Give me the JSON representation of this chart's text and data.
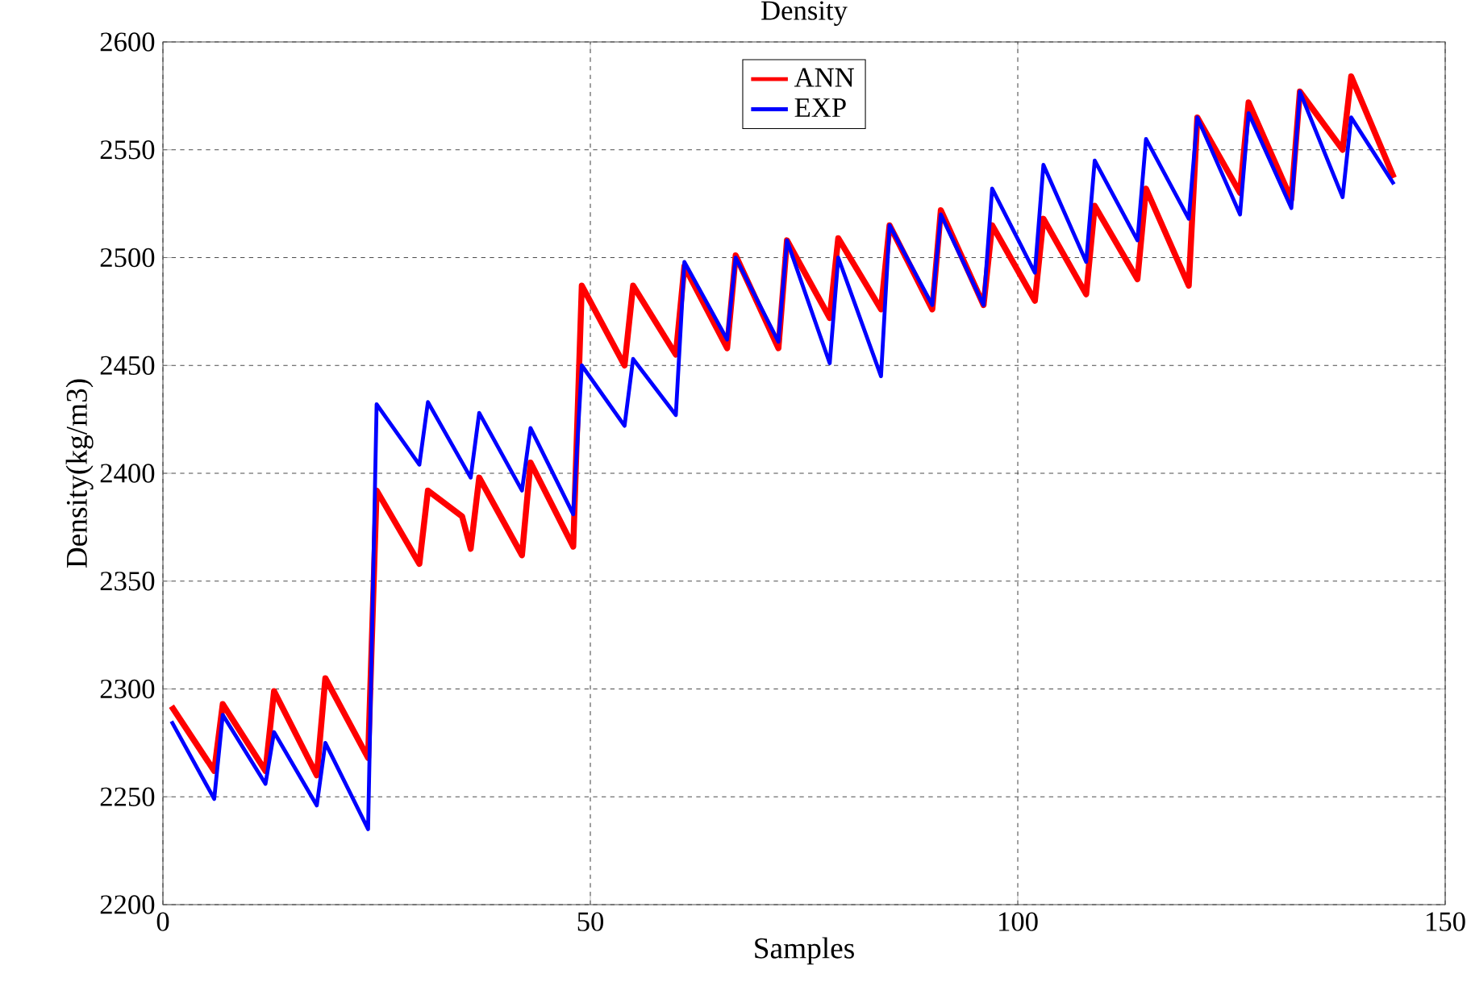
{
  "chart_data": {
    "type": "line",
    "title": "Density",
    "xlabel": "Samples",
    "ylabel": "Density(kg/m3)",
    "xlim": [
      0,
      150
    ],
    "xticks": [
      0,
      50,
      100,
      150
    ],
    "ylim": [
      2200,
      2600
    ],
    "yticks": [
      2200,
      2250,
      2300,
      2350,
      2400,
      2450,
      2500,
      2550,
      2600
    ],
    "grid": true,
    "legend": "top",
    "marker": "none",
    "line_style": "solid",
    "series": [
      {
        "name": "ANN",
        "color": "#ff0000",
        "x": [
          1,
          6,
          7,
          12,
          13,
          18,
          19,
          24,
          25,
          30,
          31,
          35,
          36,
          37,
          42,
          43,
          48,
          49,
          54,
          55,
          60,
          61,
          66,
          67,
          72,
          73,
          78,
          79,
          84,
          85,
          90,
          91,
          96,
          97,
          102,
          103,
          108,
          109,
          114,
          115,
          120,
          121,
          126,
          127,
          132,
          133,
          138,
          139,
          144
        ],
        "values": [
          2292,
          2262,
          2293,
          2262,
          2299,
          2260,
          2305,
          2268,
          2392,
          2358,
          2392,
          2380,
          2365,
          2398,
          2362,
          2405,
          2366,
          2487,
          2450,
          2487,
          2455,
          2496,
          2458,
          2501,
          2458,
          2508,
          2472,
          2509,
          2476,
          2515,
          2476,
          2522,
          2478,
          2515,
          2480,
          2518,
          2483,
          2524,
          2490,
          2532,
          2487,
          2565,
          2530,
          2572,
          2527,
          2577,
          2550,
          2584,
          2537
        ]
      },
      {
        "name": "EXP",
        "color": "#0000ff",
        "x": [
          1,
          6,
          7,
          12,
          13,
          18,
          19,
          24,
          25,
          30,
          31,
          36,
          37,
          42,
          43,
          48,
          49,
          54,
          55,
          60,
          61,
          66,
          67,
          72,
          73,
          78,
          79,
          84,
          85,
          90,
          91,
          96,
          97,
          102,
          103,
          108,
          109,
          114,
          115,
          120,
          121,
          126,
          127,
          132,
          133,
          138,
          139,
          144
        ],
        "values": [
          2285,
          2249,
          2288,
          2256,
          2280,
          2246,
          2275,
          2235,
          2432,
          2404,
          2433,
          2398,
          2428,
          2392,
          2421,
          2381,
          2450,
          2422,
          2453,
          2427,
          2498,
          2462,
          2500,
          2461,
          2508,
          2451,
          2500,
          2445,
          2515,
          2478,
          2520,
          2478,
          2532,
          2493,
          2543,
          2498,
          2545,
          2508,
          2555,
          2518,
          2565,
          2520,
          2567,
          2523,
          2577,
          2528,
          2565,
          2534
        ]
      }
    ]
  }
}
